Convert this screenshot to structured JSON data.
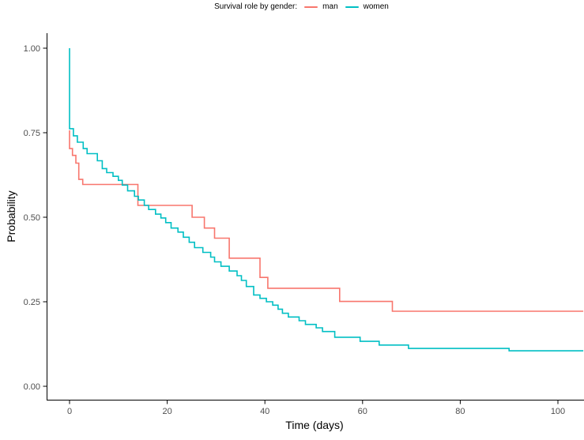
{
  "legend": {
    "title": "Survival role by gender:",
    "items": [
      {
        "label": "man",
        "color": "#F8766D"
      },
      {
        "label": "women",
        "color": "#00BFC4"
      }
    ]
  },
  "axes": {
    "x": {
      "title": "Time (days)"
    },
    "y": {
      "title": "Probability"
    }
  },
  "chart_data": {
    "type": "line",
    "subtype": "kaplan-meier-step-survival",
    "title": "Survival role by gender:",
    "xlabel": "Time (days)",
    "ylabel": "Probability",
    "xlim": [
      -4.7,
      105.3
    ],
    "ylim": [
      0.0,
      1.0
    ],
    "grid": false,
    "legend_position": "top-center",
    "x_ticks": [
      0,
      20,
      40,
      60,
      80,
      100
    ],
    "x_tick_labels": [
      "0",
      "20",
      "40",
      "60",
      "80",
      "100"
    ],
    "y_ticks": [
      0.0,
      0.25,
      0.5,
      0.75,
      1.0
    ],
    "y_tick_labels": [
      "0.00",
      "0.25",
      "0.50",
      "0.75",
      "1.00"
    ],
    "axis_line_color": "#000000",
    "tick_label_color": "#4d4d4d",
    "series": [
      {
        "name": "man",
        "color": "#F8766D",
        "points": [
          [
            0,
            0.757
          ],
          [
            0,
            0.703
          ],
          [
            0.6,
            0.683
          ],
          [
            1.3,
            0.66
          ],
          [
            1.9,
            0.612
          ],
          [
            2.7,
            0.597
          ],
          [
            14,
            0.535
          ],
          [
            25.1,
            0.5
          ],
          [
            27.6,
            0.468
          ],
          [
            29.7,
            0.438
          ],
          [
            32.7,
            0.379
          ],
          [
            39,
            0.322
          ],
          [
            40.6,
            0.29
          ],
          [
            55.3,
            0.251
          ],
          [
            66.1,
            0.222
          ],
          [
            105.2,
            0.222
          ]
        ]
      },
      {
        "name": "women",
        "color": "#00BFC4",
        "points": [
          [
            0,
            1.0
          ],
          [
            0,
            0.762
          ],
          [
            0.8,
            0.741
          ],
          [
            1.6,
            0.722
          ],
          [
            2.8,
            0.703
          ],
          [
            3.6,
            0.688
          ],
          [
            5.7,
            0.667
          ],
          [
            6.7,
            0.644
          ],
          [
            7.6,
            0.632
          ],
          [
            8.9,
            0.621
          ],
          [
            10,
            0.609
          ],
          [
            10.8,
            0.595
          ],
          [
            11.9,
            0.578
          ],
          [
            13.3,
            0.562
          ],
          [
            14.1,
            0.551
          ],
          [
            15.3,
            0.535
          ],
          [
            16.2,
            0.523
          ],
          [
            17.6,
            0.509
          ],
          [
            18.7,
            0.498
          ],
          [
            19.7,
            0.484
          ],
          [
            20.8,
            0.468
          ],
          [
            22.2,
            0.456
          ],
          [
            23.3,
            0.441
          ],
          [
            24.5,
            0.426
          ],
          [
            25.6,
            0.41
          ],
          [
            27.3,
            0.396
          ],
          [
            28.9,
            0.382
          ],
          [
            29.7,
            0.368
          ],
          [
            31,
            0.355
          ],
          [
            32.7,
            0.341
          ],
          [
            34.3,
            0.327
          ],
          [
            35.2,
            0.313
          ],
          [
            36.2,
            0.295
          ],
          [
            37.7,
            0.27
          ],
          [
            39,
            0.26
          ],
          [
            40.3,
            0.25
          ],
          [
            41.6,
            0.24
          ],
          [
            42.7,
            0.228
          ],
          [
            43.6,
            0.216
          ],
          [
            44.8,
            0.205
          ],
          [
            47,
            0.194
          ],
          [
            48.3,
            0.183
          ],
          [
            50.5,
            0.173
          ],
          [
            51.8,
            0.162
          ],
          [
            54.3,
            0.145
          ],
          [
            59.5,
            0.133
          ],
          [
            63.4,
            0.122
          ],
          [
            69.4,
            0.112
          ],
          [
            90,
            0.105
          ],
          [
            105.2,
            0.105
          ]
        ]
      }
    ]
  }
}
